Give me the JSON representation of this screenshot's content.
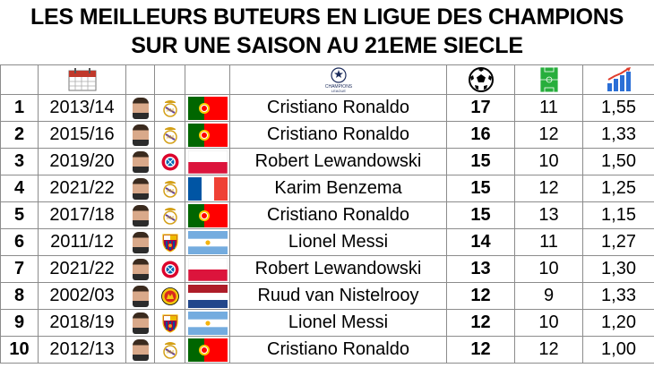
{
  "title": {
    "line1": "LES MEILLEURS BUTEURS EN LIGUE DES CHAMPIONS",
    "line2": "SUR UNE SAISON AU 21EME SIECLE"
  },
  "header": {
    "season_icon": "calendar-icon",
    "competition_logo": "champions-league-logo",
    "competition_logo_text": "CHAMPIONS LEAGUE",
    "goals_icon": "football-icon",
    "matches_icon": "pitch-icon",
    "ratio_icon": "bar-chart-icon"
  },
  "colors": {
    "grid": "#8c8c8c",
    "text": "#000000"
  },
  "rows": [
    {
      "rank": "1",
      "season": "2013/14",
      "club": "real-madrid",
      "flag": "portugal",
      "player": "Cristiano Ronaldo",
      "goals": "17",
      "matches": "11",
      "ratio": "1,55"
    },
    {
      "rank": "2",
      "season": "2015/16",
      "club": "real-madrid",
      "flag": "portugal",
      "player": "Cristiano Ronaldo",
      "goals": "16",
      "matches": "12",
      "ratio": "1,33"
    },
    {
      "rank": "3",
      "season": "2019/20",
      "club": "bayern",
      "flag": "poland",
      "player": "Robert Lewandowski",
      "goals": "15",
      "matches": "10",
      "ratio": "1,50"
    },
    {
      "rank": "4",
      "season": "2021/22",
      "club": "real-madrid",
      "flag": "france",
      "player": "Karim Benzema",
      "goals": "15",
      "matches": "12",
      "ratio": "1,25"
    },
    {
      "rank": "5",
      "season": "2017/18",
      "club": "real-madrid",
      "flag": "portugal",
      "player": "Cristiano Ronaldo",
      "goals": "15",
      "matches": "13",
      "ratio": "1,15"
    },
    {
      "rank": "6",
      "season": "2011/12",
      "club": "barcelona",
      "flag": "argentina",
      "player": "Lionel Messi",
      "goals": "14",
      "matches": "11",
      "ratio": "1,27"
    },
    {
      "rank": "7",
      "season": "2021/22",
      "club": "bayern",
      "flag": "poland",
      "player": "Robert Lewandowski",
      "goals": "13",
      "matches": "10",
      "ratio": "1,30"
    },
    {
      "rank": "8",
      "season": "2002/03",
      "club": "man-united",
      "flag": "netherlands",
      "player": "Ruud van Nistelrooy",
      "goals": "12",
      "matches": "9",
      "ratio": "1,33"
    },
    {
      "rank": "9",
      "season": "2018/19",
      "club": "barcelona",
      "flag": "argentina",
      "player": "Lionel Messi",
      "goals": "12",
      "matches": "10",
      "ratio": "1,20"
    },
    {
      "rank": "10",
      "season": "2012/13",
      "club": "real-madrid",
      "flag": "portugal",
      "player": "Cristiano Ronaldo",
      "goals": "12",
      "matches": "12",
      "ratio": "1,00"
    }
  ]
}
